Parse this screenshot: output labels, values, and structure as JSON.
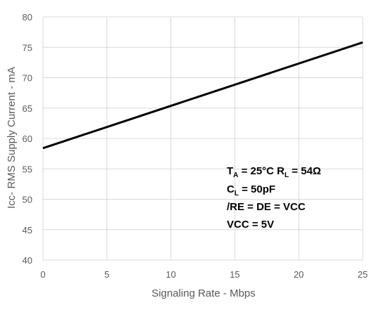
{
  "chart_data": {
    "type": "line",
    "title": "",
    "xlabel": "Signaling Rate - Mbps",
    "ylabel": "Icc- RMS Supply Current - mA",
    "xlim": [
      0,
      25
    ],
    "ylim": [
      40,
      80
    ],
    "xticks": [
      0,
      5,
      10,
      15,
      20,
      25
    ],
    "yticks": [
      40,
      45,
      50,
      55,
      60,
      65,
      70,
      75,
      80
    ],
    "grid": true,
    "series": [
      {
        "color": "#000000",
        "x": [
          0,
          25
        ],
        "y": [
          58.4,
          75.8
        ]
      }
    ],
    "annotations": {
      "line1_a": "T",
      "line1_a_sub": "A",
      "line1_b": " = 25°C  R",
      "line1_b_sub": "L",
      "line1_c": " = 54Ω",
      "line2_a": "C",
      "line2_a_sub": "L",
      "line2_b": " = 50pF",
      "line3": "/RE = DE = VCC",
      "line4": "VCC = 5V"
    }
  }
}
